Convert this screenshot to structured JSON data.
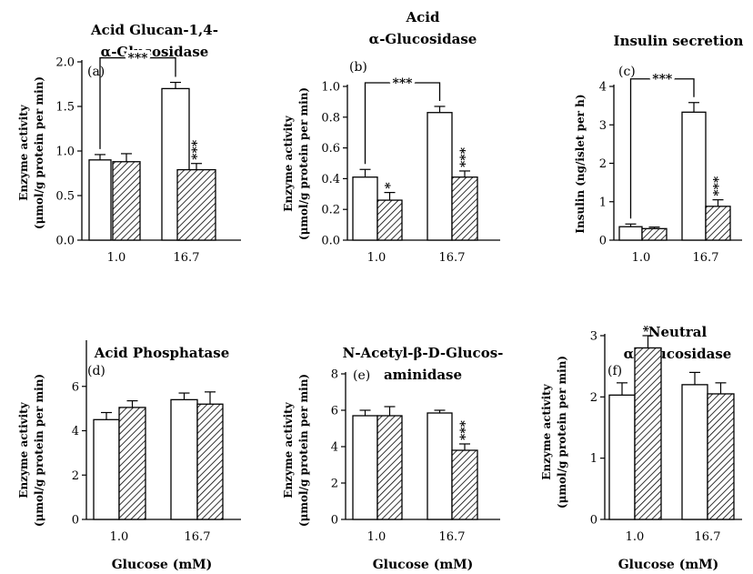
{
  "figure": {
    "xlabel": "Glucose (mM)",
    "colors": {
      "stroke": "#000000",
      "open_fill": "#ffffff",
      "hatch": "#000000"
    },
    "bar_styles": [
      "open",
      "hatched"
    ]
  },
  "chart_data": [
    {
      "type": "bar",
      "panel_label": "(a)",
      "title": [
        "Acid Glucan-1,4-",
        "α-Glucosidase"
      ],
      "ylabel": [
        "Enzyme activity",
        "(μmol/g protein per min)"
      ],
      "xlabel": "",
      "ylim": [
        0,
        2.0
      ],
      "yticks": [
        "0.0",
        "0.5",
        "1.0",
        "1.5",
        "2.0"
      ],
      "categories": [
        "1.0",
        "16.7"
      ],
      "series": [
        {
          "style": "open",
          "values": [
            0.9,
            1.7
          ],
          "errors": [
            0.06,
            0.07
          ],
          "marks": [
            "",
            ""
          ]
        },
        {
          "style": "hatched",
          "values": [
            0.88,
            0.79
          ],
          "errors": [
            0.09,
            0.07
          ],
          "marks": [
            "",
            "***"
          ]
        }
      ],
      "bracket": {
        "from": [
          0,
          0
        ],
        "to": [
          1,
          0
        ],
        "label": "***"
      }
    },
    {
      "type": "bar",
      "panel_label": "(b)",
      "title": [
        "Acid",
        "α-Glucosidase"
      ],
      "ylabel": [
        "Enzyme activity",
        "(μmol/g protein per min)"
      ],
      "xlabel": "",
      "ylim": [
        0,
        1.0
      ],
      "yticks": [
        "0.0",
        "0.2",
        "0.4",
        "0.6",
        "0.8",
        "1.0"
      ],
      "categories": [
        "1.0",
        "16.7"
      ],
      "series": [
        {
          "style": "open",
          "values": [
            0.41,
            0.83
          ],
          "errors": [
            0.05,
            0.04
          ],
          "marks": [
            "",
            ""
          ]
        },
        {
          "style": "hatched",
          "values": [
            0.26,
            0.41
          ],
          "errors": [
            0.05,
            0.04
          ],
          "marks": [
            "*",
            "***"
          ]
        }
      ],
      "bracket": {
        "from": [
          0,
          0
        ],
        "to": [
          1,
          0
        ],
        "label": "***"
      }
    },
    {
      "type": "bar",
      "panel_label": "(c)",
      "title": [
        "Insulin secretion"
      ],
      "ylabel": [
        "Insulin (ng/islet per h)"
      ],
      "xlabel": "",
      "ylim": [
        0,
        4
      ],
      "yticks": [
        "0",
        "1",
        "2",
        "3",
        "4"
      ],
      "categories": [
        "1.0",
        "16.7"
      ],
      "series": [
        {
          "style": "open",
          "values": [
            0.35,
            3.33
          ],
          "errors": [
            0.07,
            0.25
          ],
          "marks": [
            "",
            ""
          ]
        },
        {
          "style": "hatched",
          "values": [
            0.3,
            0.88
          ],
          "errors": [
            0.04,
            0.17
          ],
          "marks": [
            "",
            "***"
          ]
        }
      ],
      "bracket": {
        "from": [
          0,
          0
        ],
        "to": [
          1,
          0
        ],
        "label": "***"
      }
    },
    {
      "type": "bar",
      "panel_label": "(d)",
      "title": [
        "Acid Phosphatase"
      ],
      "ylabel": [
        "Enzyme activity",
        "(μmol/g protein per min)"
      ],
      "xlabel": "Glucose (mM)",
      "ylim": [
        0,
        8
      ],
      "yticks": [
        "0",
        "2",
        "4",
        "6"
      ],
      "categories": [
        "1.0",
        "16.7"
      ],
      "series": [
        {
          "style": "open",
          "values": [
            4.5,
            5.4
          ],
          "errors": [
            0.32,
            0.3
          ],
          "marks": [
            "",
            ""
          ]
        },
        {
          "style": "hatched",
          "values": [
            5.05,
            5.2
          ],
          "errors": [
            0.3,
            0.55
          ],
          "marks": [
            "",
            ""
          ]
        }
      ],
      "bracket": null
    },
    {
      "type": "bar",
      "panel_label": "(e)",
      "title": [
        "N-Acetyl-β-D-Glucos-",
        "aminidase"
      ],
      "ylabel": [
        "Enzyme activity",
        "(μmol/g protein per min)"
      ],
      "xlabel": "Glucose (mM)",
      "ylim": [
        0,
        8
      ],
      "yticks": [
        "0",
        "2",
        "4",
        "6",
        "8"
      ],
      "categories": [
        "1.0",
        "16.7"
      ],
      "series": [
        {
          "style": "open",
          "values": [
            5.7,
            5.85
          ],
          "errors": [
            0.3,
            0.15
          ],
          "marks": [
            "",
            ""
          ]
        },
        {
          "style": "hatched",
          "values": [
            5.7,
            3.8
          ],
          "errors": [
            0.5,
            0.35
          ],
          "marks": [
            "",
            "***"
          ]
        }
      ],
      "bracket": null
    },
    {
      "type": "bar",
      "panel_label": "(f)",
      "title": [
        "Neutral",
        "α-Glucosidase"
      ],
      "ylabel": [
        "Enzyme activity",
        "(μmol/g protein per min)"
      ],
      "xlabel": "Glucose (mM)",
      "ylim": [
        0,
        3
      ],
      "yticks": [
        "0",
        "1",
        "2",
        "3"
      ],
      "categories": [
        "1.0",
        "16.7"
      ],
      "series": [
        {
          "style": "open",
          "values": [
            2.03,
            2.2
          ],
          "errors": [
            0.2,
            0.2
          ],
          "marks": [
            "",
            ""
          ]
        },
        {
          "style": "hatched",
          "values": [
            2.8,
            2.05
          ],
          "errors": [
            0.2,
            0.18
          ],
          "marks": [
            "*",
            ""
          ]
        }
      ],
      "bracket": null
    }
  ]
}
